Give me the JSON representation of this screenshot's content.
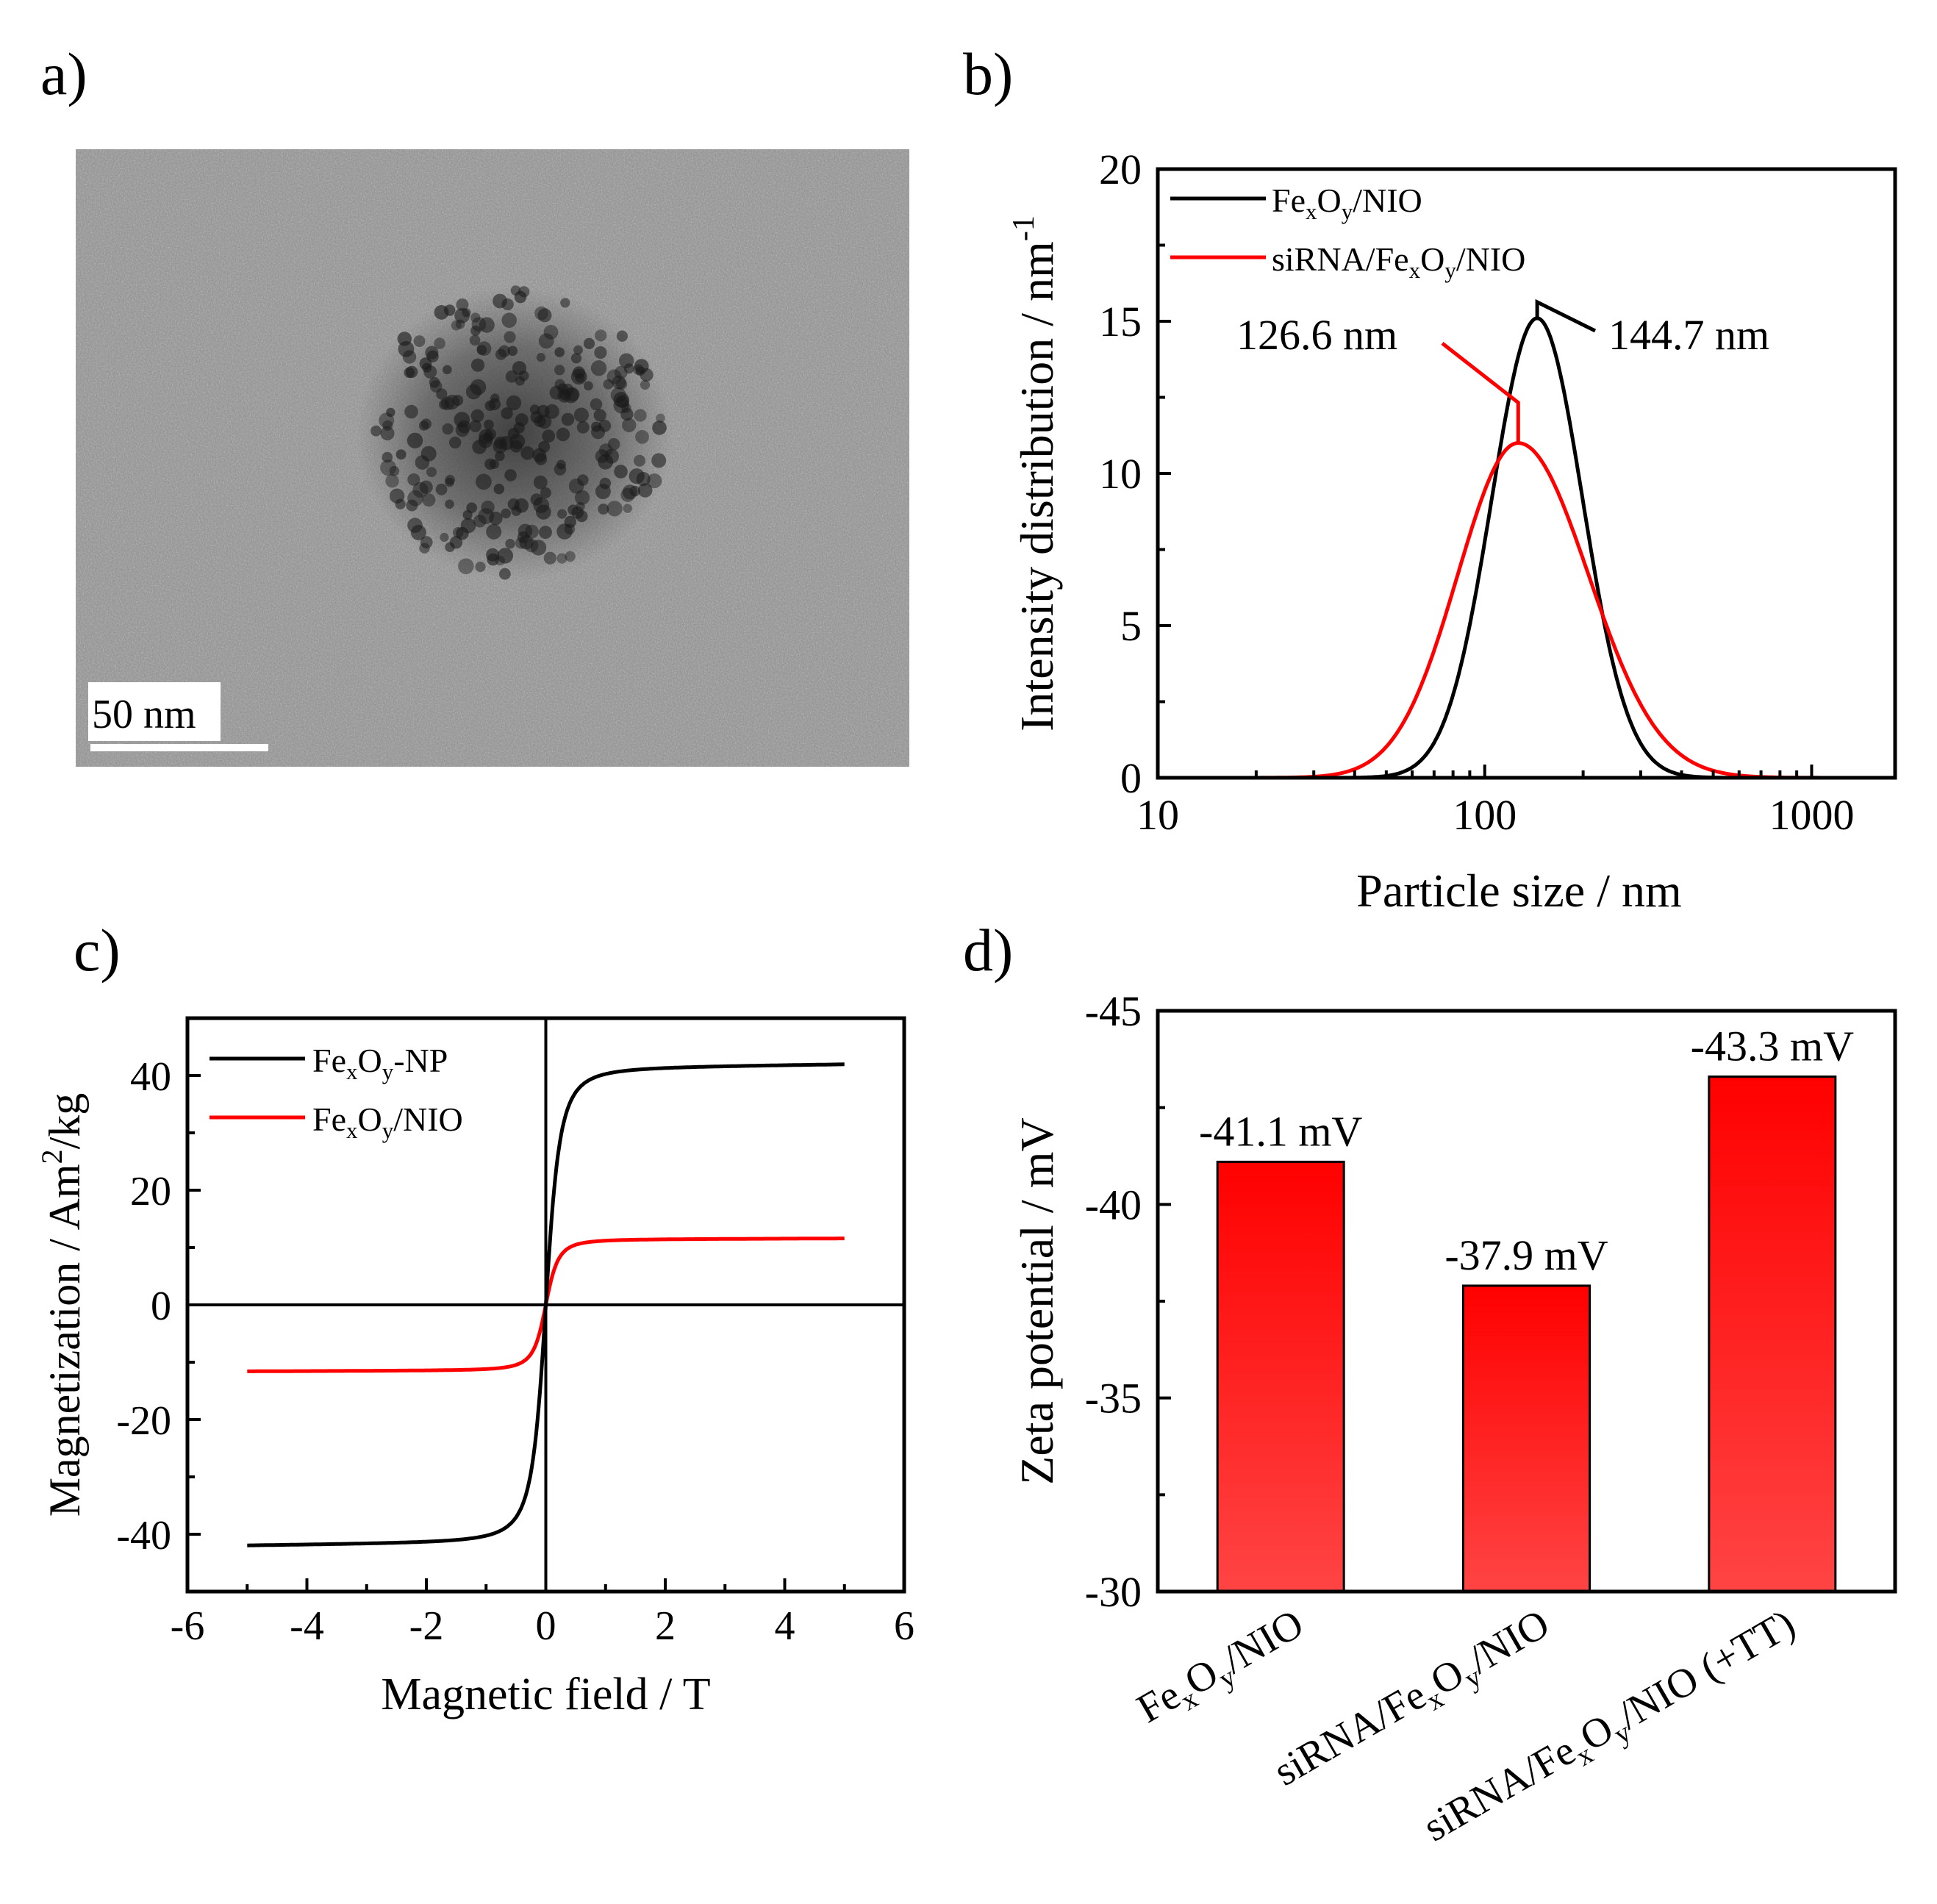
{
  "panels": {
    "a": {
      "label": "a)",
      "scale_bar_label": "50 nm",
      "description_type": "TEM micrograph"
    },
    "b": {
      "label": "b)"
    },
    "c": {
      "label": "c)"
    },
    "d": {
      "label": "d)"
    }
  },
  "chart_data": [
    {
      "panel": "b",
      "type": "line",
      "x_scale": "log",
      "xlabel": "Particle size / nm",
      "ylabel": "Intensity distribution / nm-1",
      "ylabel_main": "Intensity distribution / nm",
      "ylabel_sup": "-1",
      "xlim": [
        10,
        1800
      ],
      "ylim": [
        0,
        20
      ],
      "xticks": [
        10,
        100,
        1000
      ],
      "xtick_labels": [
        "10",
        "100",
        "1000"
      ],
      "yticks": [
        0,
        5,
        10,
        15,
        20
      ],
      "ytick_labels": [
        "0",
        "5",
        "10",
        "15",
        "20"
      ],
      "legend_position": "top-left",
      "series": [
        {
          "name": "FexOy/NIO",
          "color": "#000000",
          "peak_x": 144.7,
          "peak_y": 15.1,
          "sigma_log10": 0.139
        },
        {
          "name": "siRNA/FexOy/NIO",
          "color": "#ff0000",
          "peak_x": 126.6,
          "peak_y": 11.0,
          "sigma_log10": 0.198,
          "sigma_log10_left": 0.185,
          "sigma_log10_right": 0.215
        }
      ],
      "legend": [
        {
          "base": "Fe",
          "s1": "x",
          "mid": "O",
          "s2": "y",
          "tail": "/NIO",
          "color": "#000000"
        },
        {
          "pre": "siRNA/",
          "base": "Fe",
          "s1": "x",
          "mid": "O",
          "s2": "y",
          "tail": "/NIO",
          "color": "#ff0000"
        }
      ],
      "annotations": [
        {
          "text": "144.7 nm",
          "series": "FexOy/NIO"
        },
        {
          "text": "126.6 nm",
          "series": "siRNA/FexOy/NIO"
        }
      ]
    },
    {
      "panel": "c",
      "type": "line",
      "xlabel": "Magnetic field / T",
      "ylabel": "Magnetization / Am2/kg",
      "ylabel_pre": "Magnetization / Am",
      "ylabel_sup": "2",
      "ylabel_post": "/kg",
      "xlim": [
        -6,
        6
      ],
      "ylim": [
        -50,
        50
      ],
      "xticks": [
        -6,
        -4,
        -2,
        0,
        2,
        4,
        6
      ],
      "xtick_labels": [
        "-6",
        "-4",
        "-2",
        "0",
        "2",
        "4",
        "6"
      ],
      "yticks": [
        -40,
        -20,
        0,
        20,
        40
      ],
      "ytick_labels": [
        "-40",
        "-20",
        "0",
        "20",
        "40"
      ],
      "legend_position": "top-left",
      "series": [
        {
          "name": "FexOy-NP",
          "color": "#000000",
          "Ms": 42.0,
          "field_range": [
            -5,
            5
          ],
          "steepness": 0.25
        },
        {
          "name": "FexOy/NIO",
          "color": "#ff0000",
          "Ms": 11.6,
          "field_range": [
            -5,
            5
          ],
          "steepness": 0.22
        }
      ],
      "legend": [
        {
          "base": "Fe",
          "s1": "x",
          "mid": "O",
          "s2": "y",
          "tail": "-NP",
          "color": "#000000"
        },
        {
          "base": "Fe",
          "s1": "x",
          "mid": "O",
          "s2": "y",
          "tail": "/NIO",
          "color": "#ff0000"
        }
      ]
    },
    {
      "panel": "d",
      "type": "bar",
      "ylabel": "Zeta potential / mV",
      "ylim": [
        -30,
        -45
      ],
      "yticks": [
        -30,
        -35,
        -40,
        -45
      ],
      "ytick_labels": [
        "-30",
        "-35",
        "-40",
        "-45"
      ],
      "categories": [
        "FexOy/NIO",
        "siRNA/FexOy/NIO",
        "siRNA/FexOy/NIO (+TT)"
      ],
      "category_labels": [
        {
          "pre": "",
          "base": "Fe",
          "s1": "x",
          "mid": "O",
          "s2": "y",
          "tail": "/NIO"
        },
        {
          "pre": "siRNA/",
          "base": "Fe",
          "s1": "x",
          "mid": "O",
          "s2": "y",
          "tail": "/NIO"
        },
        {
          "pre": "siRNA/",
          "base": "Fe",
          "s1": "x",
          "mid": "O",
          "s2": "y",
          "tail": "/NIO (+TT)"
        }
      ],
      "values": [
        -41.1,
        -37.9,
        -43.3
      ],
      "value_labels": [
        "-41.1 mV",
        "-37.9 mV",
        "-43.3 mV"
      ],
      "bar_color_top": "#ff0000",
      "bar_color_bottom": "#ff4444"
    }
  ]
}
